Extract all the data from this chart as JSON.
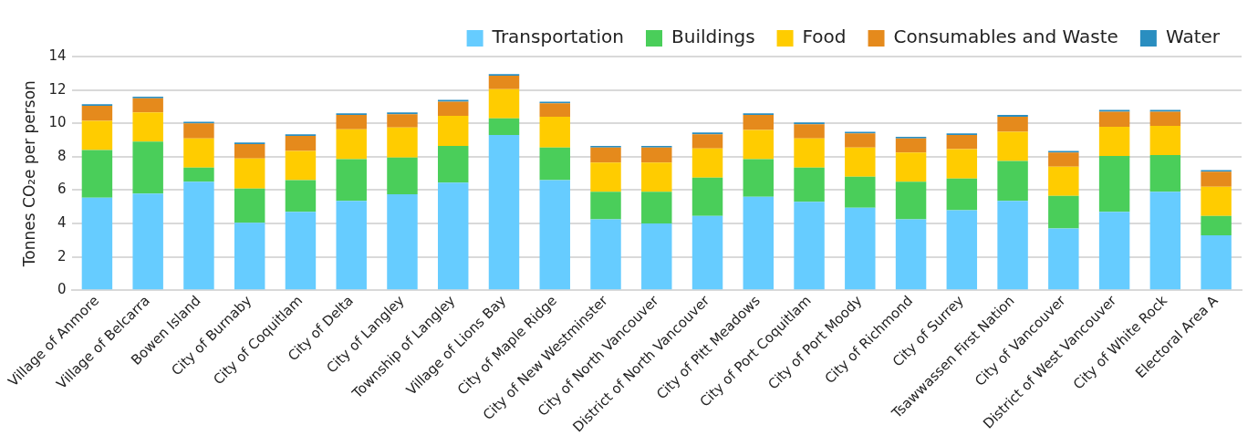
{
  "chart_data": {
    "type": "bar",
    "stacked": true,
    "ylabel": "Tonnes CO₂e per person",
    "legend": "top right",
    "grid": "y",
    "ylim": [
      0,
      14
    ],
    "yticks": [
      0,
      2,
      4,
      6,
      8,
      10,
      12,
      14
    ],
    "categories": [
      "Village of Anmore",
      "Village of Belcarra",
      "Bowen Island",
      "City of Burnaby",
      "City of Coquitlam",
      "City of Delta",
      "City of Langley",
      "Township of Langley",
      "Village of Lions Bay",
      "City of Maple Ridge",
      "City of New Westminster",
      "City of North Vancouver",
      "District of North Vancouver",
      "City of Pitt Meadows",
      "City of Port Coquitlam",
      "City of Port Moody",
      "City of Richmond",
      "City of Surrey",
      "Tsawwassen First Nation",
      "City of Vancouver",
      "District of West Vancouver",
      "City of White Rock",
      "Electoral Area A"
    ],
    "series": [
      {
        "name": "Transportation",
        "color": "#66ccff",
        "values": [
          5.55,
          5.8,
          6.5,
          4.05,
          4.7,
          5.35,
          5.75,
          6.45,
          9.3,
          6.6,
          4.25,
          4.0,
          4.45,
          5.6,
          5.3,
          4.95,
          4.25,
          4.8,
          5.35,
          3.7,
          4.7,
          5.9,
          3.3
        ]
      },
      {
        "name": "Buildings",
        "color": "#4ace5a",
        "values": [
          2.85,
          3.1,
          0.85,
          2.05,
          1.9,
          2.5,
          2.2,
          2.2,
          1.0,
          1.95,
          1.65,
          1.9,
          2.3,
          2.25,
          2.05,
          1.85,
          2.25,
          1.9,
          2.4,
          1.95,
          3.35,
          2.2,
          1.15
        ]
      },
      {
        "name": "Food",
        "color": "#ffcc00",
        "values": [
          1.75,
          1.75,
          1.75,
          1.8,
          1.75,
          1.8,
          1.8,
          1.8,
          1.75,
          1.85,
          1.75,
          1.75,
          1.75,
          1.75,
          1.75,
          1.75,
          1.75,
          1.75,
          1.75,
          1.75,
          1.75,
          1.75,
          1.75
        ]
      },
      {
        "name": "Consumables and Waste",
        "color": "#e58a1c",
        "values": [
          0.9,
          0.85,
          0.9,
          0.85,
          0.9,
          0.85,
          0.8,
          0.85,
          0.8,
          0.8,
          0.9,
          0.9,
          0.85,
          0.9,
          0.85,
          0.85,
          0.85,
          0.85,
          0.9,
          0.85,
          0.9,
          0.85,
          0.9
        ]
      },
      {
        "name": "Water",
        "color": "#2a8ec0",
        "values": [
          0.1,
          0.1,
          0.1,
          0.1,
          0.1,
          0.1,
          0.1,
          0.1,
          0.1,
          0.1,
          0.1,
          0.1,
          0.1,
          0.1,
          0.1,
          0.1,
          0.1,
          0.1,
          0.1,
          0.1,
          0.1,
          0.1,
          0.1
        ]
      }
    ]
  }
}
